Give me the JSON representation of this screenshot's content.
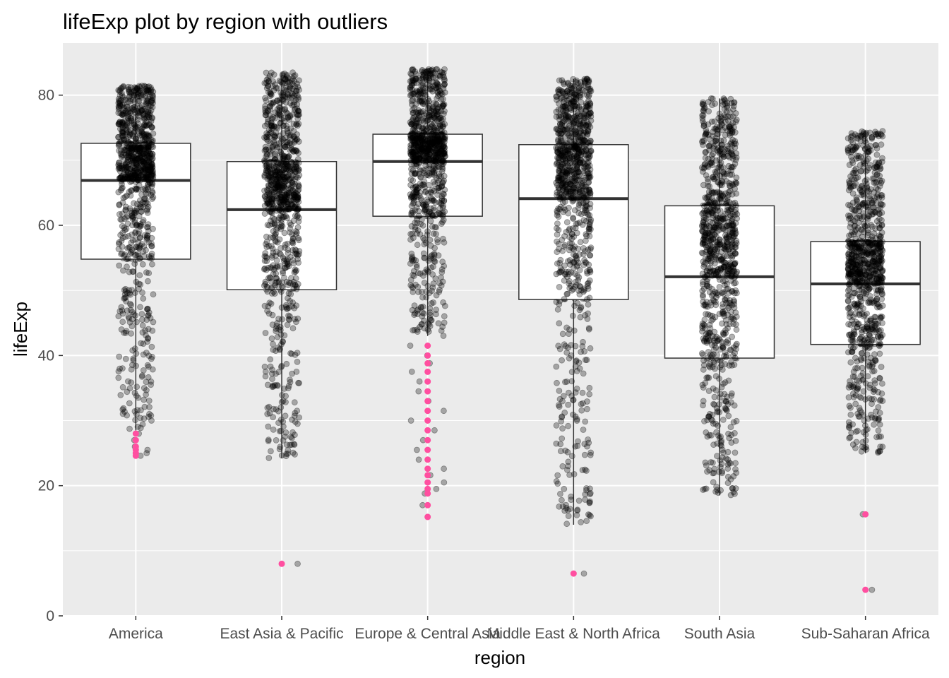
{
  "chart_data": {
    "type": "boxplot",
    "title": "lifeExp plot by region with outliers",
    "xlabel": "region",
    "ylabel": "lifeExp",
    "ylim": [
      0,
      88
    ],
    "yticks": [
      0,
      20,
      40,
      60,
      80
    ],
    "grid": true,
    "categories": [
      "America",
      "East Asia & Pacific",
      "Europe & Central Asia",
      "Middle East & North Africa",
      "South Asia",
      "Sub-Saharan Africa"
    ],
    "boxes": [
      {
        "category": "America",
        "whisker_low": 28.5,
        "q1": 54.8,
        "median": 66.9,
        "q3": 72.6,
        "whisker_high": 81.5,
        "outliers": [
          24.6,
          25.0,
          25.5,
          26.0,
          27.0,
          28.0
        ]
      },
      {
        "category": "East Asia & Pacific",
        "whisker_low": 24.2,
        "q1": 50.1,
        "median": 62.4,
        "q3": 69.8,
        "whisker_high": 83.5,
        "outliers": [
          8.0
        ]
      },
      {
        "category": "Europe & Central Asia",
        "whisker_low": 43.0,
        "q1": 61.4,
        "median": 69.8,
        "q3": 74.0,
        "whisker_high": 84.0,
        "outliers": [
          15.2,
          17.0,
          18.8,
          19.5,
          20.5,
          21.6,
          22.6,
          24.0,
          25.5,
          27.0,
          28.5,
          30.0,
          31.5,
          33.0,
          34.5,
          36.0,
          37.5,
          38.8,
          40.0,
          41.5
        ]
      },
      {
        "category": "Middle East & North Africa",
        "whisker_low": 14.0,
        "q1": 48.6,
        "median": 64.1,
        "q3": 72.4,
        "whisker_high": 82.5,
        "outliers": [
          6.5
        ]
      },
      {
        "category": "South Asia",
        "whisker_low": 18.5,
        "q1": 39.6,
        "median": 52.1,
        "q3": 63.0,
        "whisker_high": 79.5,
        "outliers": []
      },
      {
        "category": "Sub-Saharan Africa",
        "whisker_low": 25.0,
        "q1": 41.7,
        "median": 51.0,
        "q3": 57.5,
        "whisker_high": 74.5,
        "outliers": [
          4.0,
          15.6
        ]
      }
    ],
    "points": {
      "description_color": "#000000",
      "opacity": 0.3,
      "spread": 0.12
    },
    "outlier_color": "#ff4fa0",
    "panel_bg": "#ebebeb",
    "grid_color": "#ffffff"
  }
}
